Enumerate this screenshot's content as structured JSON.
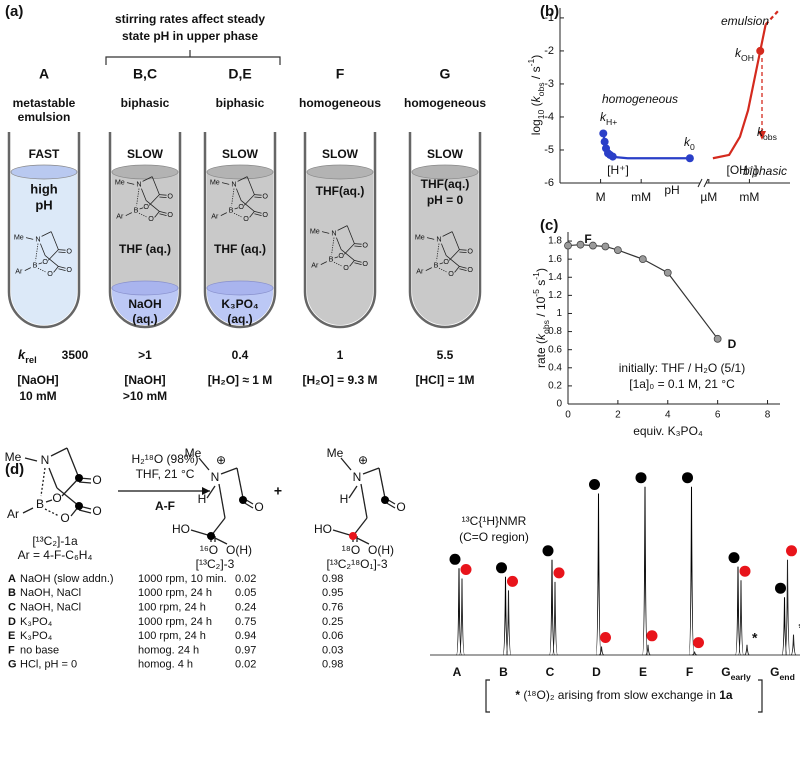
{
  "panel_labels": [
    "(a)",
    "(b)",
    "(c)",
    "(d)"
  ],
  "panel_a": {
    "header": [
      "stirring rates affect steady",
      "state pH in upper phase"
    ],
    "k_rel_label": [
      "k",
      "rel"
    ],
    "columns": [
      {
        "label": "A",
        "state": [
          "metastable",
          "emulsion"
        ],
        "rate": "FAST",
        "rate_color": "#e8402a",
        "upper": [
          "high",
          "pH"
        ],
        "k_rel": "3500",
        "conditions": [
          "[NaOH]",
          "10 mM"
        ]
      },
      {
        "label": "B,C",
        "state": [
          "biphasic"
        ],
        "rate": "SLOW",
        "rate_color": "#1f3fbf",
        "upper": [
          "THF (aq.)"
        ],
        "lower": [
          "NaOH",
          "(aq.)"
        ],
        "k_rel": ">1",
        "conditions": [
          "[NaOH]",
          ">10 mM"
        ]
      },
      {
        "label": "D,E",
        "state": [
          "biphasic"
        ],
        "rate": "SLOW",
        "rate_color": "#1f3fbf",
        "upper": [
          "THF (aq.)"
        ],
        "lower": [
          "K₃PO₄",
          "(aq.)"
        ],
        "k_rel": "0.4",
        "conditions": [
          "[H₂O] ≈ 1 M"
        ]
      },
      {
        "label": "F",
        "state": [
          "homogeneous"
        ],
        "rate": "SLOW",
        "rate_color": "#1f3fbf",
        "upper": [
          "THF(aq.)"
        ],
        "k_rel": "1",
        "conditions": [
          "[H₂O] = 9.3 M"
        ]
      },
      {
        "label": "G",
        "state": [
          "homogeneous"
        ],
        "rate": "SLOW",
        "rate_color": "#1f3fbf",
        "upper": [
          "THF(aq.)",
          "pH = 0"
        ],
        "k_rel": "5.5",
        "conditions": [
          "[HCl] = 1M"
        ]
      }
    ]
  },
  "structures": {
    "mida_atoms": [
      "Me",
      "N",
      "Ar",
      "B",
      "O",
      "O",
      "O",
      "O"
    ],
    "product_3_atoms": [
      "Me",
      "N",
      "⊕",
      "H",
      "HO",
      "O",
      "¹⁶O",
      "O(H)"
    ],
    "product_3b_atoms": [
      "Me",
      "N",
      "⊕",
      "H",
      "HO",
      "O",
      "¹⁸O",
      "O(H)"
    ]
  },
  "panel_d": {
    "reagent": "H₂¹⁸O (98%)",
    "conditions": "THF, 21 °C",
    "entries": "A-F",
    "sm_label": "[¹³C₂]-1a",
    "sm_ar": "Ar = 4-F-C₆H₄",
    "p1_label": "[¹³C₂]-3",
    "p2_label": "[¹³C₂¹⁸O₁]-3",
    "plus": "+",
    "table": {
      "rows": [
        [
          "A",
          "NaOH (slow addn.)",
          "1000 rpm, 10 min.",
          "0.02",
          "0.98"
        ],
        [
          "B",
          "NaOH, NaCl",
          "1000 rpm, 24 h",
          "0.05",
          "0.95"
        ],
        [
          "C",
          "NaOH, NaCl",
          "100   rpm, 24 h",
          "0.24",
          "0.76"
        ],
        [
          "D",
          "K₃PO₄",
          "1000 rpm, 24 h",
          "0.75",
          "0.25"
        ],
        [
          "E",
          "K₃PO₄",
          "100   rpm, 24 h",
          "0.94",
          "0.06"
        ],
        [
          "F",
          "no base",
          "homog.      24 h",
          "0.97",
          "0.03"
        ],
        [
          "G",
          "HCl, pH = 0",
          "homog.        4 h",
          "0.02",
          "0.98"
        ]
      ]
    }
  },
  "chart_data": [
    {
      "type": "line",
      "ylabel": [
        "log",
        "10",
        " (",
        "k",
        "obs",
        " / s",
        "-1",
        ")"
      ],
      "xlabel": "pH",
      "xlim": [
        -3,
        14
      ],
      "ylim": [
        -6,
        -0.7
      ],
      "yticks": [
        -6,
        -5,
        -4,
        -3,
        -2,
        -1
      ],
      "xticks": [
        {
          "value": 0,
          "label": "M"
        },
        {
          "value": 3,
          "label": "mM"
        },
        {
          "value": 8,
          "label": "µM"
        },
        {
          "value": 11,
          "label": "mM"
        }
      ],
      "series": [
        {
          "color": "#2a3fc8",
          "style": "line",
          "x": [
            0.2,
            0.4,
            0.7,
            1.2,
            2,
            4,
            6.6
          ],
          "values": [
            -4.5,
            -4.95,
            -5.15,
            -5.22,
            -5.25,
            -5.25,
            -5.25
          ]
        },
        {
          "color": "#2a3fc8",
          "style": "points",
          "x": [
            0.2,
            0.3,
            0.4,
            0.55,
            0.7,
            0.9
          ],
          "values": [
            -4.5,
            -4.75,
            -4.95,
            -5.1,
            -5.15,
            -5.2
          ]
        },
        {
          "color": "#2a3fc8",
          "style": "points",
          "x": [
            6.6
          ],
          "values": [
            -5.25
          ]
        },
        {
          "color": "#d42a1e",
          "style": "line",
          "x": [
            8.3,
            9.5,
            10.3,
            10.9,
            11.4,
            11.8,
            12.2
          ],
          "values": [
            -5.25,
            -5.15,
            -4.6,
            -3.8,
            -2.8,
            -2,
            -1.2
          ]
        },
        {
          "color": "#d42a1e",
          "style": "points",
          "x": [
            11.8
          ],
          "values": [
            -2
          ]
        },
        {
          "color": "#d42a1e",
          "style": "dashed",
          "x": [
            12.2,
            13.1
          ],
          "values": [
            -1.2,
            -0.8
          ]
        }
      ],
      "annotations": {
        "emulsion": "emulsion",
        "homogeneous": "homogeneous",
        "biphasic": "biphasic",
        "k_h": [
          "k",
          "H+"
        ],
        "k_0": [
          "k",
          "0"
        ],
        "k_oh": [
          "k",
          "OH"
        ],
        "k_obs": [
          "k",
          "obs"
        ],
        "h_conc": "[H⁺]",
        "oh_conc": "[OH⁻]"
      }
    },
    {
      "type": "scatter",
      "ylabel": [
        "rate (",
        "k",
        "obs",
        " / 10",
        "-5",
        " s",
        "-1",
        ")"
      ],
      "xlabel": "equiv. K₃PO₄",
      "xlim": [
        0,
        8.5
      ],
      "ylim": [
        0,
        1.9
      ],
      "xticks": [
        0,
        2,
        4,
        6,
        8
      ],
      "yticks": [
        0,
        0.2,
        0.4,
        0.6,
        0.8,
        1.0,
        1.2,
        1.4,
        1.6,
        1.8
      ],
      "series": [
        {
          "color": "#9a9a9a",
          "x": [
            0,
            0.5,
            1,
            1.5,
            2,
            3,
            4,
            6
          ],
          "values": [
            1.75,
            1.76,
            1.75,
            1.74,
            1.7,
            1.6,
            1.45,
            0.72
          ]
        }
      ],
      "annotations": {
        "start": "F",
        "end": "D",
        "note": [
          "initially: THF / H₂O (5/1)",
          "[1a]₀ = 0.1 M, 21 °C"
        ]
      }
    },
    {
      "type": "spectrum",
      "title": "¹³C{¹H}NMR",
      "subtitle": "(C=O region)",
      "ylim": [
        0,
        1
      ],
      "categories": [
        "A",
        "B",
        "C",
        "D",
        "E",
        "F",
        "G",
        "G"
      ],
      "category_subscripts": [
        null,
        null,
        null,
        null,
        null,
        null,
        "early",
        "end"
      ],
      "series": [
        {
          "color": "#000000",
          "values": [
            0.51,
            0.46,
            0.56,
            0.95,
            0.99,
            0.99,
            0.52,
            0.34
          ]
        },
        {
          "color": "#e8141b",
          "values": [
            0.45,
            0.38,
            0.43,
            0.05,
            0.06,
            0.02,
            0.44,
            0.56
          ]
        },
        {
          "color": "#222222",
          "marker": "*",
          "values": [
            null,
            null,
            null,
            null,
            null,
            null,
            0.06,
            0.12
          ]
        }
      ],
      "footnote": [
        "*",
        " (¹⁸O)₂ arising from slow exchange in ",
        "1a"
      ]
    }
  ]
}
